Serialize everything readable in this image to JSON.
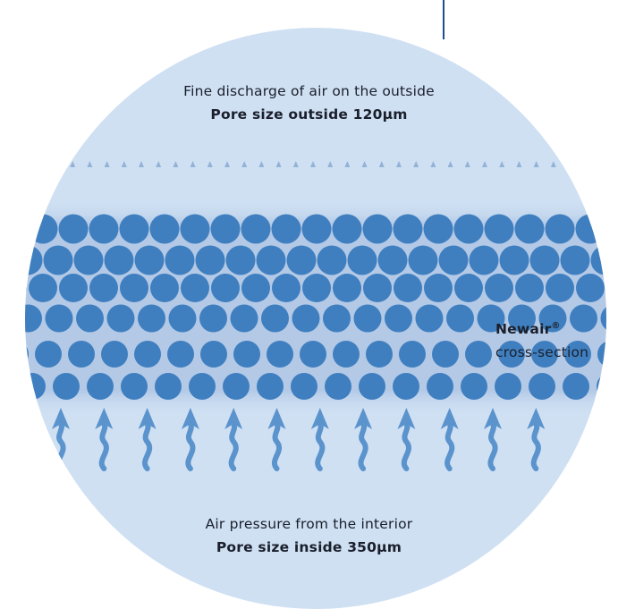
{
  "colors": {
    "circle_fill": "#cfe0f3",
    "layer_band": "#b3c9e6",
    "bubble": "#3f7fc0",
    "arrow": "#5b93cd",
    "tick": "#93b3d6",
    "divider_line": "#1e4d8f"
  },
  "top_label": {
    "line1": "Fine discharge of air on the outside",
    "line2": "Pore size outside 120µm"
  },
  "cross_section": {
    "title": "Newair",
    "trademark": "®",
    "subtitle": "cross-section"
  },
  "bottom_label": {
    "line1": "Air pressure from the interior",
    "line2": "Pore size inside 350µm"
  },
  "icons": [
    "bubble-icon",
    "air-arrow-icon",
    "tick-icon"
  ]
}
